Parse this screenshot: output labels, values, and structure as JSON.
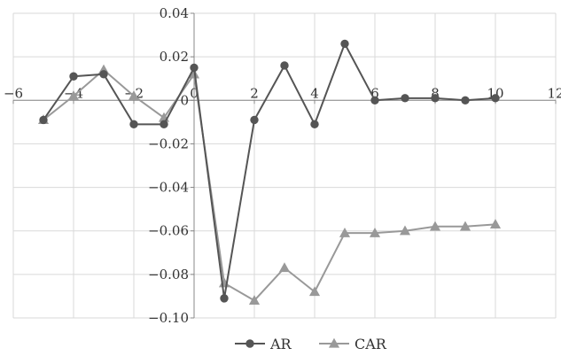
{
  "chart_data": {
    "type": "line",
    "title": "",
    "xlabel": "",
    "ylabel": "",
    "xlim": [
      -6,
      12
    ],
    "ylim": [
      -0.1,
      0.04
    ],
    "xticks": [
      -6,
      -4,
      -2,
      0,
      2,
      4,
      6,
      8,
      10,
      12
    ],
    "xtick_labels": [
      "−6",
      "−4",
      "−2",
      "0",
      "2",
      "4",
      "6",
      "8",
      "10",
      "12"
    ],
    "yticks": [
      0.04,
      0.02,
      0,
      -0.02,
      -0.04,
      -0.06,
      -0.08,
      -0.1
    ],
    "ytick_labels": [
      "0.04",
      "0.02",
      "0",
      "−0.02",
      "−0.04",
      "−0.06",
      "−0.08",
      "−0.10"
    ],
    "grid": true,
    "legend_position": "bottom",
    "series": [
      {
        "name": "AR",
        "marker": "circle",
        "color": "#555555",
        "x": [
          -5,
          -4,
          -3,
          -2,
          -1,
          0,
          1,
          2,
          3,
          4,
          5,
          6,
          7,
          8,
          9,
          10
        ],
        "y": [
          -0.009,
          0.011,
          0.012,
          -0.011,
          -0.011,
          0.015,
          -0.091,
          -0.009,
          0.016,
          -0.011,
          0.026,
          0.0,
          0.001,
          0.001,
          0.0,
          0.001
        ]
      },
      {
        "name": "CAR",
        "marker": "triangle",
        "color": "#999999",
        "x": [
          -5,
          -4,
          -3,
          -2,
          -1,
          0,
          1,
          2,
          3,
          4,
          5,
          6,
          7,
          8,
          9,
          10
        ],
        "y": [
          -0.009,
          0.002,
          0.014,
          0.002,
          -0.008,
          0.012,
          -0.084,
          -0.092,
          -0.077,
          -0.088,
          -0.061,
          -0.061,
          -0.06,
          -0.058,
          -0.058,
          -0.057
        ]
      }
    ]
  }
}
